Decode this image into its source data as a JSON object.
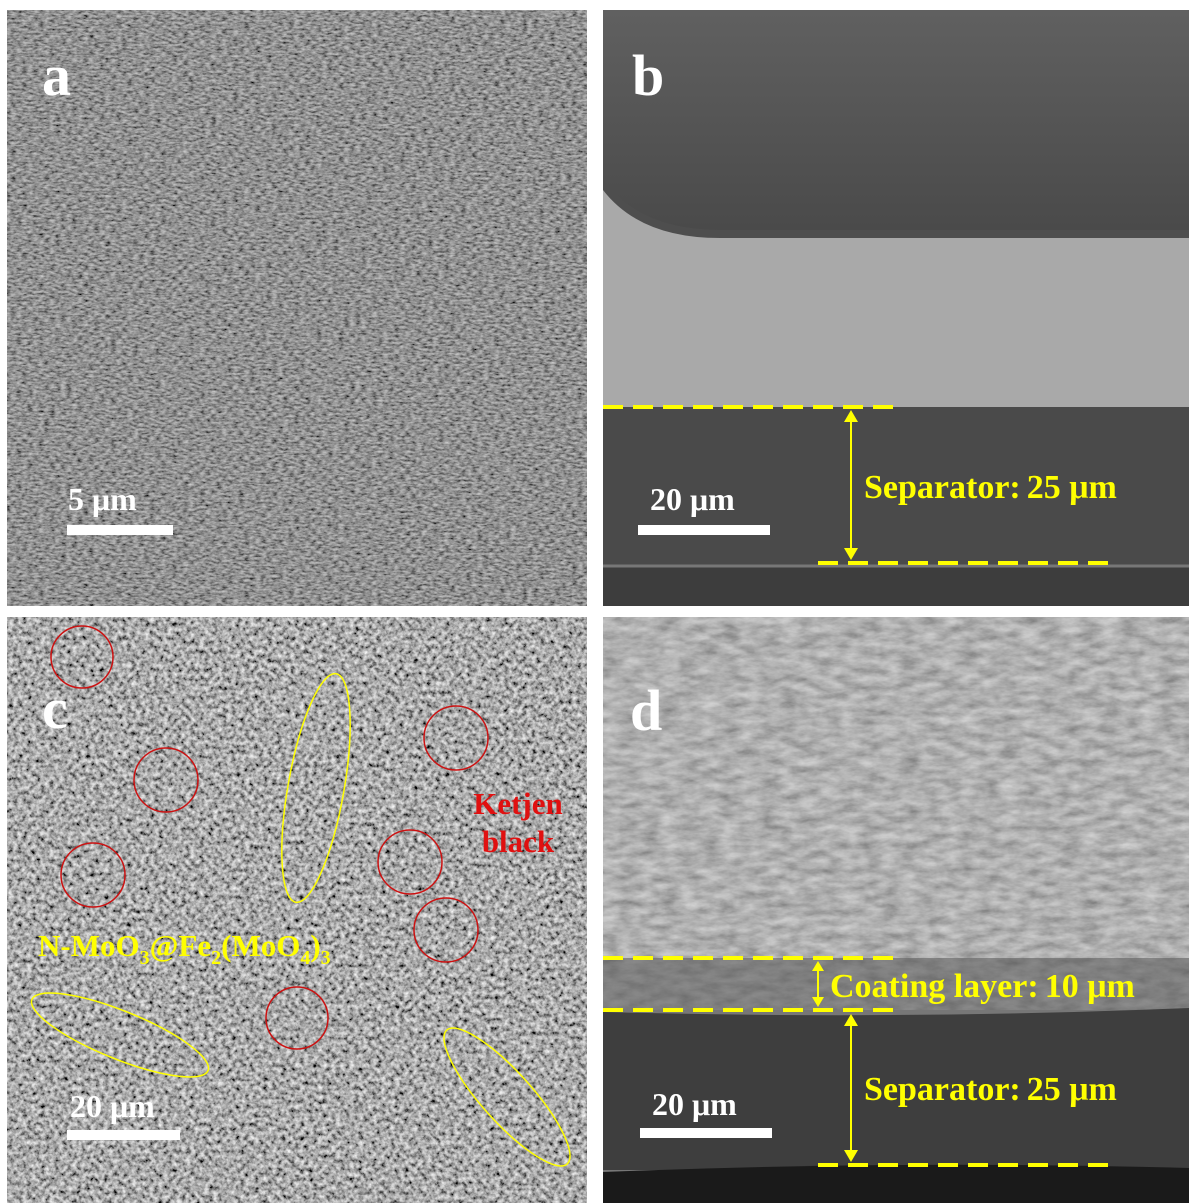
{
  "panels": [
    {
      "label": "a",
      "scale_bar": "5 μm"
    },
    {
      "label": "b",
      "scale_bar": "20 μm",
      "annotations": [
        {
          "name": "Separator:",
          "value": "25 μm"
        }
      ]
    },
    {
      "label": "c",
      "scale_bar": "20 μm",
      "ketjen": [
        "Ketjen",
        "black"
      ],
      "formula": [
        "N-MoO",
        "3",
        "@Fe",
        "2",
        "(MoO",
        "4",
        ")",
        "3"
      ]
    },
    {
      "label": "d",
      "scale_bar": "20 μm",
      "annotations": [
        {
          "name": "Coating layer:",
          "value": "10 μm"
        },
        {
          "name": "Separator:",
          "value": "25 μm"
        }
      ]
    }
  ]
}
